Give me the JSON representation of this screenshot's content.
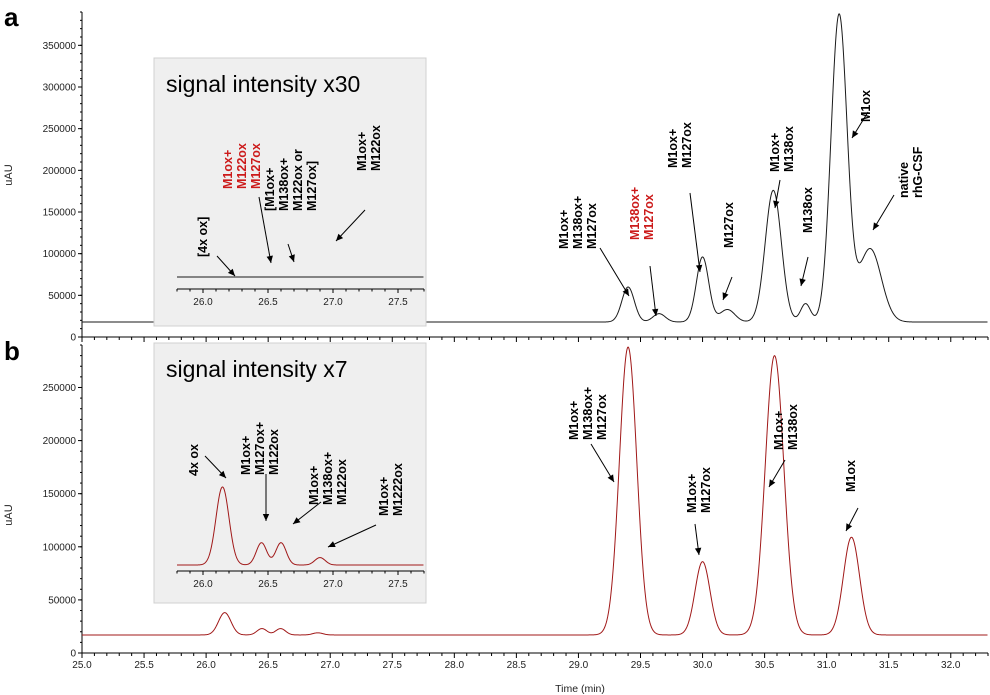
{
  "colors": {
    "trace_a": "#1a1a1a",
    "trace_b": "#a01818",
    "highlight": "#cc1a1a",
    "inset_bg": "#efefef"
  },
  "chart_data": [
    {
      "panel": "a",
      "type": "line",
      "ylabel": "uAU",
      "xlim": [
        25.0,
        32.3
      ],
      "ylim": [
        0,
        390000
      ],
      "yticks": [
        0,
        50000,
        100000,
        150000,
        200000,
        250000,
        300000,
        350000
      ],
      "baseline": 18000,
      "peaks": [
        {
          "x": 29.4,
          "height": 42000,
          "width": 0.05
        },
        {
          "x": 29.65,
          "height": 10000,
          "width": 0.05
        },
        {
          "x": 30.0,
          "height": 78000,
          "width": 0.05
        },
        {
          "x": 30.2,
          "height": 15000,
          "width": 0.06
        },
        {
          "x": 30.57,
          "height": 158000,
          "width": 0.065
        },
        {
          "x": 30.83,
          "height": 22000,
          "width": 0.04
        },
        {
          "x": 31.1,
          "height": 368000,
          "width": 0.065
        },
        {
          "x": 31.35,
          "height": 88000,
          "width": 0.09
        }
      ],
      "labels": [
        {
          "text": [
            "M1ox+",
            "M138ox+",
            "M127ox"
          ],
          "color": "black"
        },
        {
          "text": [
            "M138ox+",
            "M127ox"
          ],
          "color": "red"
        },
        {
          "text": [
            "M1ox+",
            "M127ox"
          ],
          "color": "black"
        },
        {
          "text": [
            "M127ox"
          ],
          "color": "black"
        },
        {
          "text": [
            "M1ox+",
            "M138ox"
          ],
          "color": "black"
        },
        {
          "text": [
            "M138ox"
          ],
          "color": "black"
        },
        {
          "text": [
            "M1ox"
          ],
          "color": "black"
        },
        {
          "text": [
            "native",
            "rhG-CSF"
          ],
          "color": "black"
        }
      ],
      "inset": {
        "title": "signal intensity x30",
        "xlim": [
          25.8,
          27.7
        ],
        "xticks": [
          26.0,
          26.5,
          27.0,
          27.5
        ],
        "labels": [
          {
            "text": [
              "[4x ox]"
            ],
            "color": "black"
          },
          {
            "text": [
              "M1ox+",
              "M122ox",
              "M127ox"
            ],
            "color": "red"
          },
          {
            "text": [
              "[M1ox+",
              "M138ox+",
              "M122ox or",
              "M127ox]"
            ],
            "color": "black"
          },
          {
            "text": [
              "M1ox+",
              "M122ox"
            ],
            "color": "black"
          }
        ]
      }
    },
    {
      "panel": "b",
      "type": "line",
      "ylabel": "uAU",
      "xlabel": "Time (min)",
      "xlim": [
        25.0,
        32.3
      ],
      "ylim": [
        0,
        290000
      ],
      "yticks": [
        0,
        50000,
        100000,
        150000,
        200000,
        250000
      ],
      "xticks": [
        25.0,
        25.5,
        26.0,
        26.5,
        27.0,
        27.5,
        28.0,
        28.5,
        29.0,
        29.5,
        30.0,
        30.5,
        31.0,
        31.5,
        32.0
      ],
      "baseline": 17000,
      "peaks": [
        {
          "x": 26.15,
          "height": 21000,
          "width": 0.05
        },
        {
          "x": 26.45,
          "height": 6000,
          "width": 0.04
        },
        {
          "x": 26.6,
          "height": 6000,
          "width": 0.04
        },
        {
          "x": 26.9,
          "height": 2000,
          "width": 0.04
        },
        {
          "x": 29.4,
          "height": 271000,
          "width": 0.07
        },
        {
          "x": 30.0,
          "height": 69000,
          "width": 0.06
        },
        {
          "x": 30.58,
          "height": 263000,
          "width": 0.075
        },
        {
          "x": 31.2,
          "height": 92000,
          "width": 0.065
        }
      ],
      "labels": [
        {
          "text": [
            "M1ox+",
            "M138ox+",
            "M127ox"
          ],
          "color": "black"
        },
        {
          "text": [
            "M1ox+",
            "M127ox"
          ],
          "color": "black"
        },
        {
          "text": [
            "M1ox+",
            "M138ox"
          ],
          "color": "black"
        },
        {
          "text": [
            "M1ox"
          ],
          "color": "black"
        }
      ],
      "inset": {
        "title": "signal intensity x7",
        "xlim": [
          25.8,
          27.7
        ],
        "xticks": [
          26.0,
          26.5,
          27.0,
          27.5
        ],
        "labels": [
          {
            "text": [
              "4x ox"
            ],
            "color": "black"
          },
          {
            "text": [
              "M1ox+",
              "M127ox+",
              "M122ox"
            ],
            "color": "black"
          },
          {
            "text": [
              "M1ox+",
              "M138ox+",
              "M122ox"
            ],
            "color": "black"
          },
          {
            "text": [
              "M1ox+",
              "M1222ox"
            ],
            "color": "black"
          }
        ]
      }
    }
  ]
}
